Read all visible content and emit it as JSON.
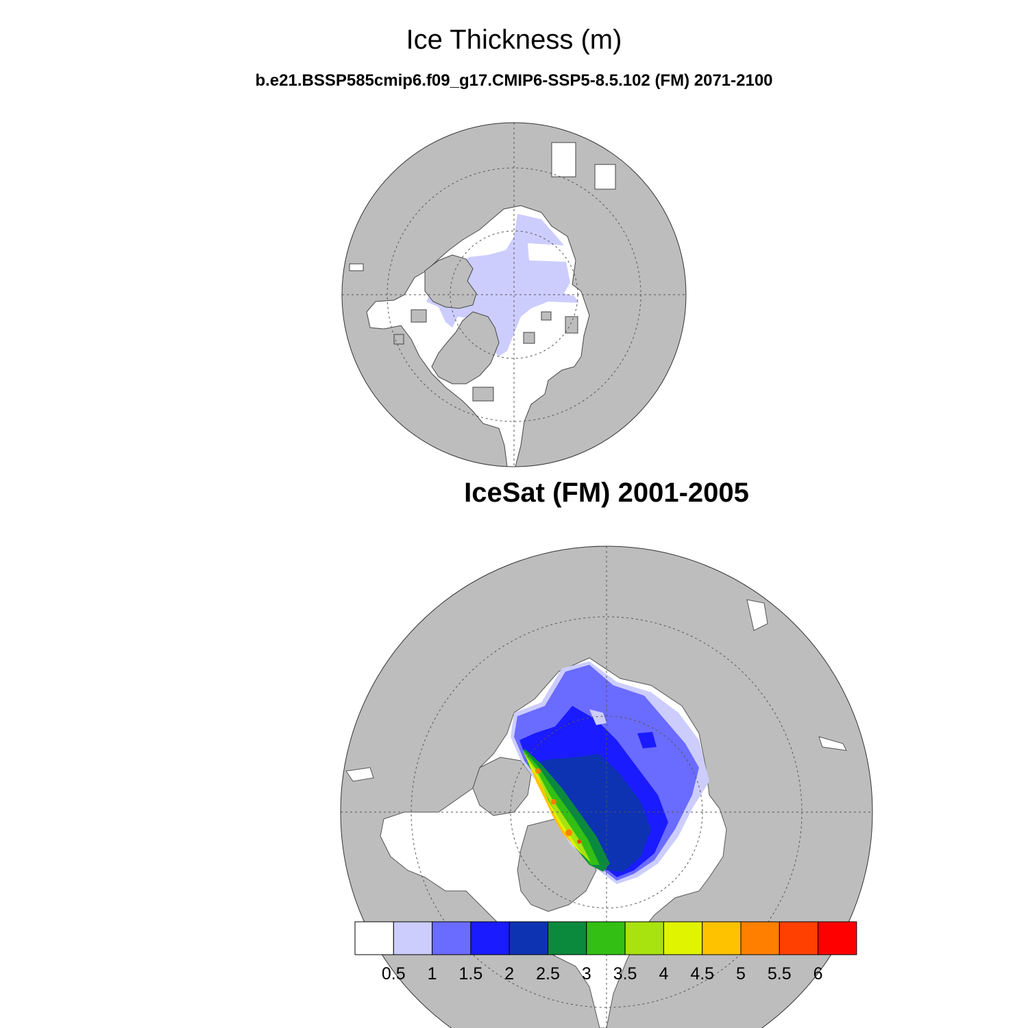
{
  "title": "Ice Thickness (m)",
  "subtitle": "b.e21.BSSP585cmip6.f09_g17.CMIP6-SSP5-8.5.102 (FM) 2071-2100",
  "panel2_title": "IceSat (FM) 2001-2005",
  "colors": {
    "land": "#bdbdbd",
    "ocean": "#ffffff",
    "coast": "#444444"
  },
  "colorbar": {
    "labels": [
      "0.5",
      "1",
      "1.5",
      "2",
      "2.5",
      "3",
      "3.5",
      "4",
      "4.5",
      "5",
      "5.5",
      "6"
    ],
    "colors": [
      "#ffffff",
      "#cccdfd",
      "#6a6bff",
      "#1a1bff",
      "#0d33b3",
      "#0b8a3e",
      "#33bf14",
      "#a8e20f",
      "#e0f400",
      "#ffc200",
      "#ff8000",
      "#ff4000",
      "#ff0000"
    ]
  }
}
